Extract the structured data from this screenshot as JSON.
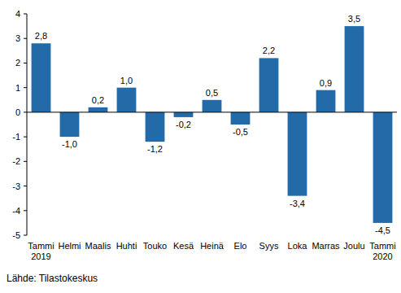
{
  "chart_data": {
    "type": "bar",
    "categories": [
      "Tammi\n2019",
      "Helmi",
      "Maalis",
      "Huhti",
      "Touko",
      "Kesä",
      "Heinä",
      "Elo",
      "Syys",
      "Loka",
      "Marras",
      "Joulu",
      "Tammi\n2020"
    ],
    "values": [
      2.8,
      -1.0,
      0.2,
      1.0,
      -1.2,
      -0.2,
      0.5,
      -0.5,
      2.2,
      -3.4,
      0.9,
      3.5,
      -4.5
    ],
    "value_labels": [
      "2,8",
      "-1,0",
      "0,2",
      "1,0",
      "-1,2",
      "-0,2",
      "0,5",
      "-0,5",
      "2,2",
      "-3,4",
      "0,9",
      "3,5",
      "-4,5"
    ],
    "data_labels": true,
    "color": "#236ba8",
    "ylim": [
      -5,
      4
    ],
    "yticks": [
      -5,
      -4,
      -3,
      -2,
      -1,
      0,
      1,
      2,
      3,
      4
    ],
    "grid": false,
    "source": "Lähde: Tilastokeskus"
  }
}
